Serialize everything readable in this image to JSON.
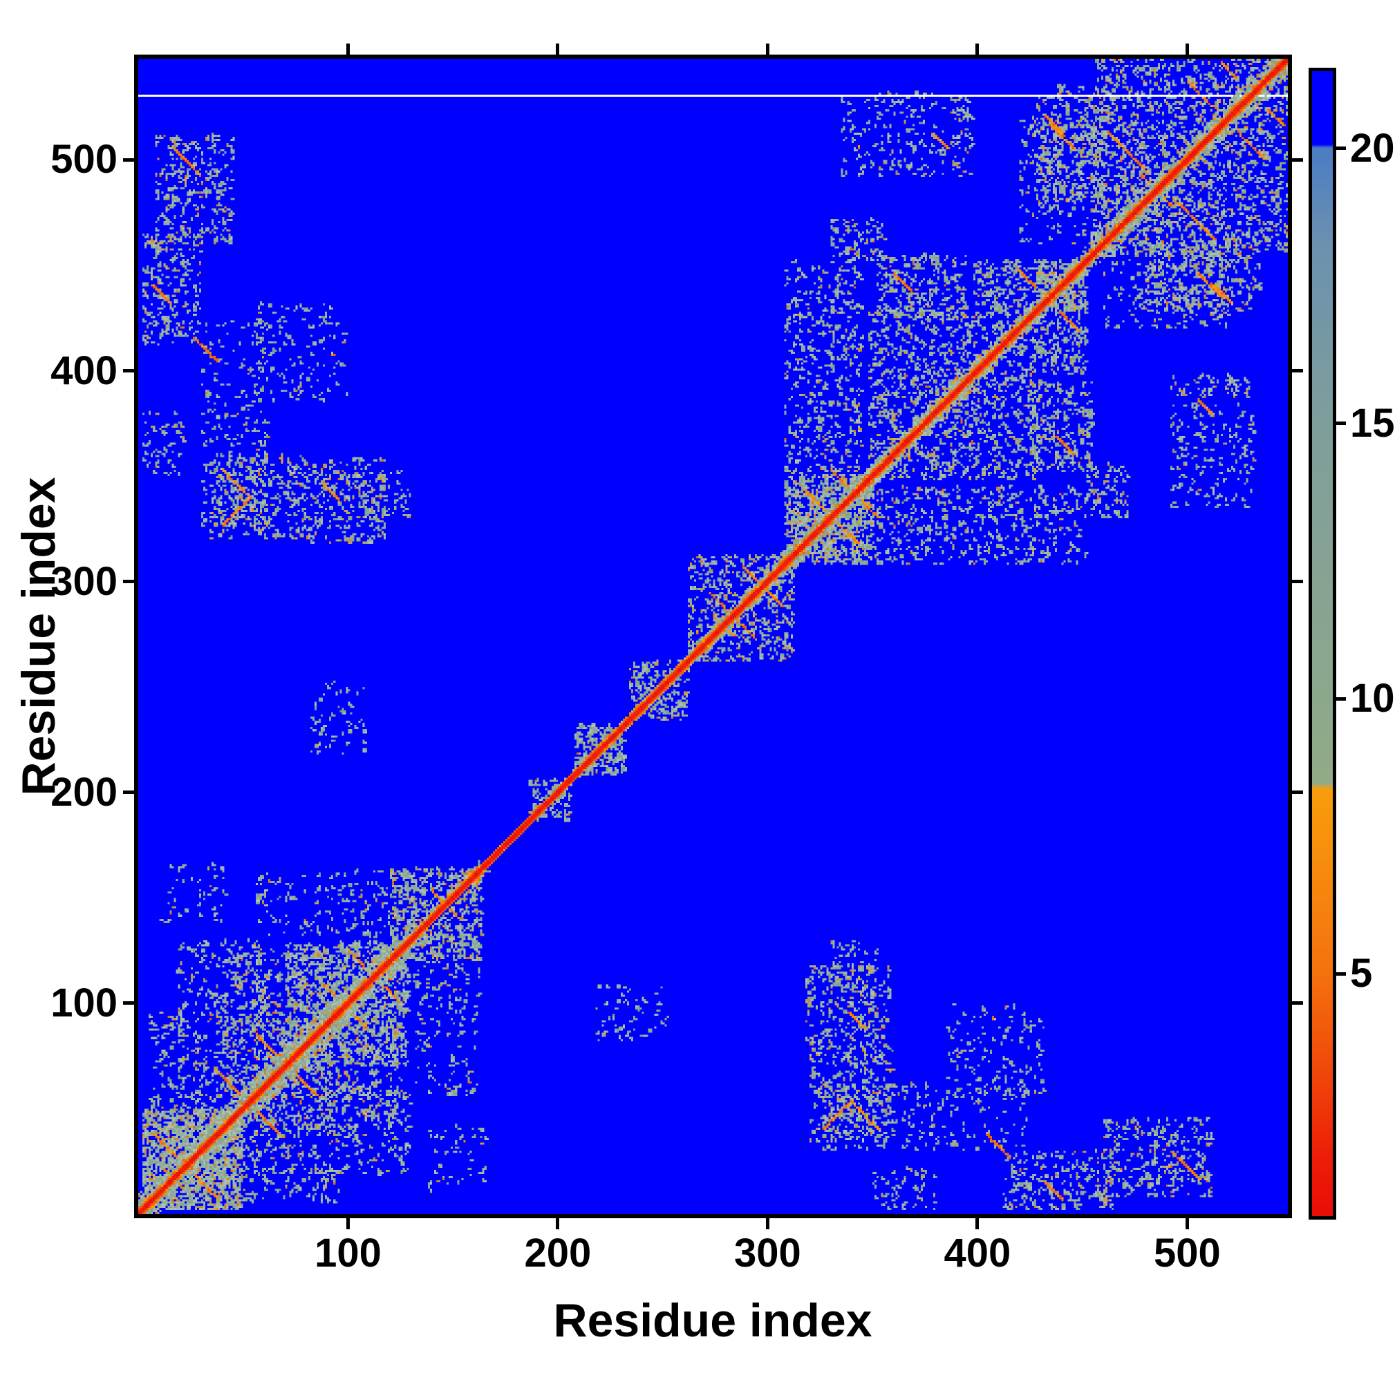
{
  "figure": {
    "kind": "protein residue distance-map heatmap",
    "background": "#ffffff"
  },
  "axes": {
    "x_label": "Residue index",
    "y_label": "Residue index"
  },
  "chart_data": {
    "type": "heatmap",
    "title": "",
    "xlabel": "Residue index",
    "ylabel": "Residue index",
    "x_range": [
      0,
      548
    ],
    "y_range": [
      0,
      548
    ],
    "x_ticks": {
      "values": [
        100,
        200,
        300,
        400,
        500
      ],
      "labels": [
        "100",
        "200",
        "300",
        "400",
        "500"
      ]
    },
    "y_ticks": {
      "values": [
        100,
        200,
        300,
        400,
        500
      ],
      "labels": [
        "100",
        "200",
        "300",
        "400",
        "500"
      ]
    },
    "grid": false,
    "colorbar": {
      "position": "right",
      "value_range": [
        0.6,
        21.4
      ],
      "tick_values": [
        20,
        15,
        10,
        5
      ],
      "tick_labels": [
        "20",
        "15",
        "10",
        "5"
      ],
      "gradient_stops": [
        [
          0.0,
          "#0000ff"
        ],
        [
          0.064,
          "#0000ff"
        ],
        [
          0.067,
          "#4b7cc4"
        ],
        [
          0.15,
          "#6b91af"
        ],
        [
          0.306,
          "#7e9e9b"
        ],
        [
          0.45,
          "#87a392"
        ],
        [
          0.547,
          "#8ca88c"
        ],
        [
          0.622,
          "#92ab86"
        ],
        [
          0.627,
          "#f89d0b"
        ],
        [
          0.7,
          "#f68a0e"
        ],
        [
          0.7875,
          "#f4720e"
        ],
        [
          0.88,
          "#f04409"
        ],
        [
          0.95,
          "#ec1d08"
        ],
        [
          1.0,
          "#e90d07"
        ]
      ]
    },
    "heatmap": {
      "n_residues": 548,
      "symmetric": true,
      "background_color": "#0000ff",
      "palette": {
        "red_core": [
          "#ea1508",
          "#f02206"
        ],
        "red_orange": "#f35709",
        "oranges": [
          "#f79b0e",
          "#f28a10",
          "#ef7a11",
          "#f0650d"
        ],
        "greens": [
          "#8ba78f",
          "#97b098",
          "#a3b9a3",
          "#7fa08d",
          "#aec2ae",
          "#92a99e",
          "#9eb4a5"
        ],
        "missing": "#ffffff"
      },
      "white_missing_row": 530,
      "blue_gap_line": {
        "from": 138,
        "to": 158,
        "offset": 3
      },
      "diagonal_halo_segments": [
        [
          0,
          128,
          9
        ],
        [
          128,
          163,
          5
        ],
        [
          163,
          210,
          2
        ],
        [
          210,
          262,
          3
        ],
        [
          262,
          306,
          5
        ],
        [
          306,
          350,
          7
        ],
        [
          350,
          455,
          6
        ],
        [
          455,
          548,
          8
        ]
      ],
      "contact_clusters": [
        [
          2,
          50,
          2,
          50,
          650,
          0.12
        ],
        [
          5,
          62,
          38,
          96,
          420,
          0.1
        ],
        [
          40,
          100,
          60,
          126,
          480,
          0.1
        ],
        [
          70,
          128,
          70,
          128,
          420,
          0.09
        ],
        [
          95,
          130,
          18,
          60,
          150,
          0.06
        ],
        [
          126,
          163,
          95,
          132,
          130,
          0.06
        ],
        [
          132,
          162,
          55,
          95,
          80,
          0.05
        ],
        [
          138,
          166,
          10,
          42,
          45,
          0.05
        ],
        [
          120,
          164,
          120,
          164,
          240,
          0.1
        ],
        [
          186,
          206,
          186,
          206,
          70,
          0.06
        ],
        [
          208,
          232,
          208,
          232,
          90,
          0.06
        ],
        [
          234,
          262,
          234,
          262,
          110,
          0.08
        ],
        [
          218,
          252,
          82,
          108,
          60,
          0.04
        ],
        [
          262,
          312,
          262,
          312,
          260,
          0.1
        ],
        [
          308,
          350,
          308,
          350,
          400,
          0.12
        ],
        [
          308,
          345,
          350,
          452,
          480,
          0.09
        ],
        [
          348,
          430,
          348,
          430,
          620,
          0.08
        ],
        [
          352,
          395,
          425,
          455,
          240,
          0.1
        ],
        [
          398,
          428,
          430,
          452,
          150,
          0.1
        ],
        [
          428,
          452,
          428,
          452,
          170,
          0.1
        ],
        [
          330,
          356,
          452,
          472,
          90,
          0.08
        ],
        [
          492,
          532,
          335,
          398,
          230,
          0.08
        ],
        [
          428,
          460,
          480,
          535,
          260,
          0.1
        ],
        [
          455,
          548,
          455,
          548,
          850,
          0.1
        ],
        [
          460,
          520,
          420,
          462,
          280,
          0.1
        ],
        [
          8,
          45,
          460,
          512,
          280,
          0.1
        ],
        [
          2,
          30,
          412,
          465,
          220,
          0.1
        ],
        [
          30,
          62,
          325,
          425,
          210,
          0.06
        ],
        [
          55,
          100,
          385,
          432,
          130,
          0.05
        ],
        [
          34,
          80,
          320,
          360,
          300,
          0.12
        ],
        [
          78,
          118,
          318,
          358,
          260,
          0.1
        ],
        [
          2,
          22,
          350,
          380,
          55,
          0.05
        ],
        [
          104,
          130,
          330,
          352,
          60,
          0.08
        ]
      ],
      "orange_streaks": [
        [
          6,
          38,
          16,
          -1
        ],
        [
          36,
          68,
          14,
          -1
        ],
        [
          56,
          84,
          18,
          -1
        ],
        [
          88,
          108,
          12,
          -1
        ],
        [
          100,
          124,
          8,
          -1
        ],
        [
          140,
          152,
          8,
          -1
        ],
        [
          272,
          294,
          8,
          -1
        ],
        [
          288,
          306,
          8,
          -1
        ],
        [
          318,
          342,
          12,
          -1
        ],
        [
          330,
          352,
          8,
          -1
        ],
        [
          360,
          445,
          10,
          -1
        ],
        [
          418,
          448,
          10,
          -1
        ],
        [
          505,
          445,
          12,
          -1
        ],
        [
          432,
          520,
          10,
          -1
        ],
        [
          462,
          512,
          20,
          -1
        ],
        [
          478,
          492,
          10,
          -1
        ],
        [
          500,
          536,
          12,
          -1
        ],
        [
          516,
          545,
          8,
          -1
        ],
        [
          16,
          505,
          14,
          -1
        ],
        [
          26,
          415,
          12,
          -1
        ],
        [
          40,
          352,
          14,
          -1
        ],
        [
          40,
          326,
          14,
          1
        ],
        [
          88,
          345,
          8,
          -1
        ],
        [
          6,
          440,
          10,
          -1
        ],
        [
          505,
          385,
          8,
          -1
        ]
      ]
    }
  }
}
